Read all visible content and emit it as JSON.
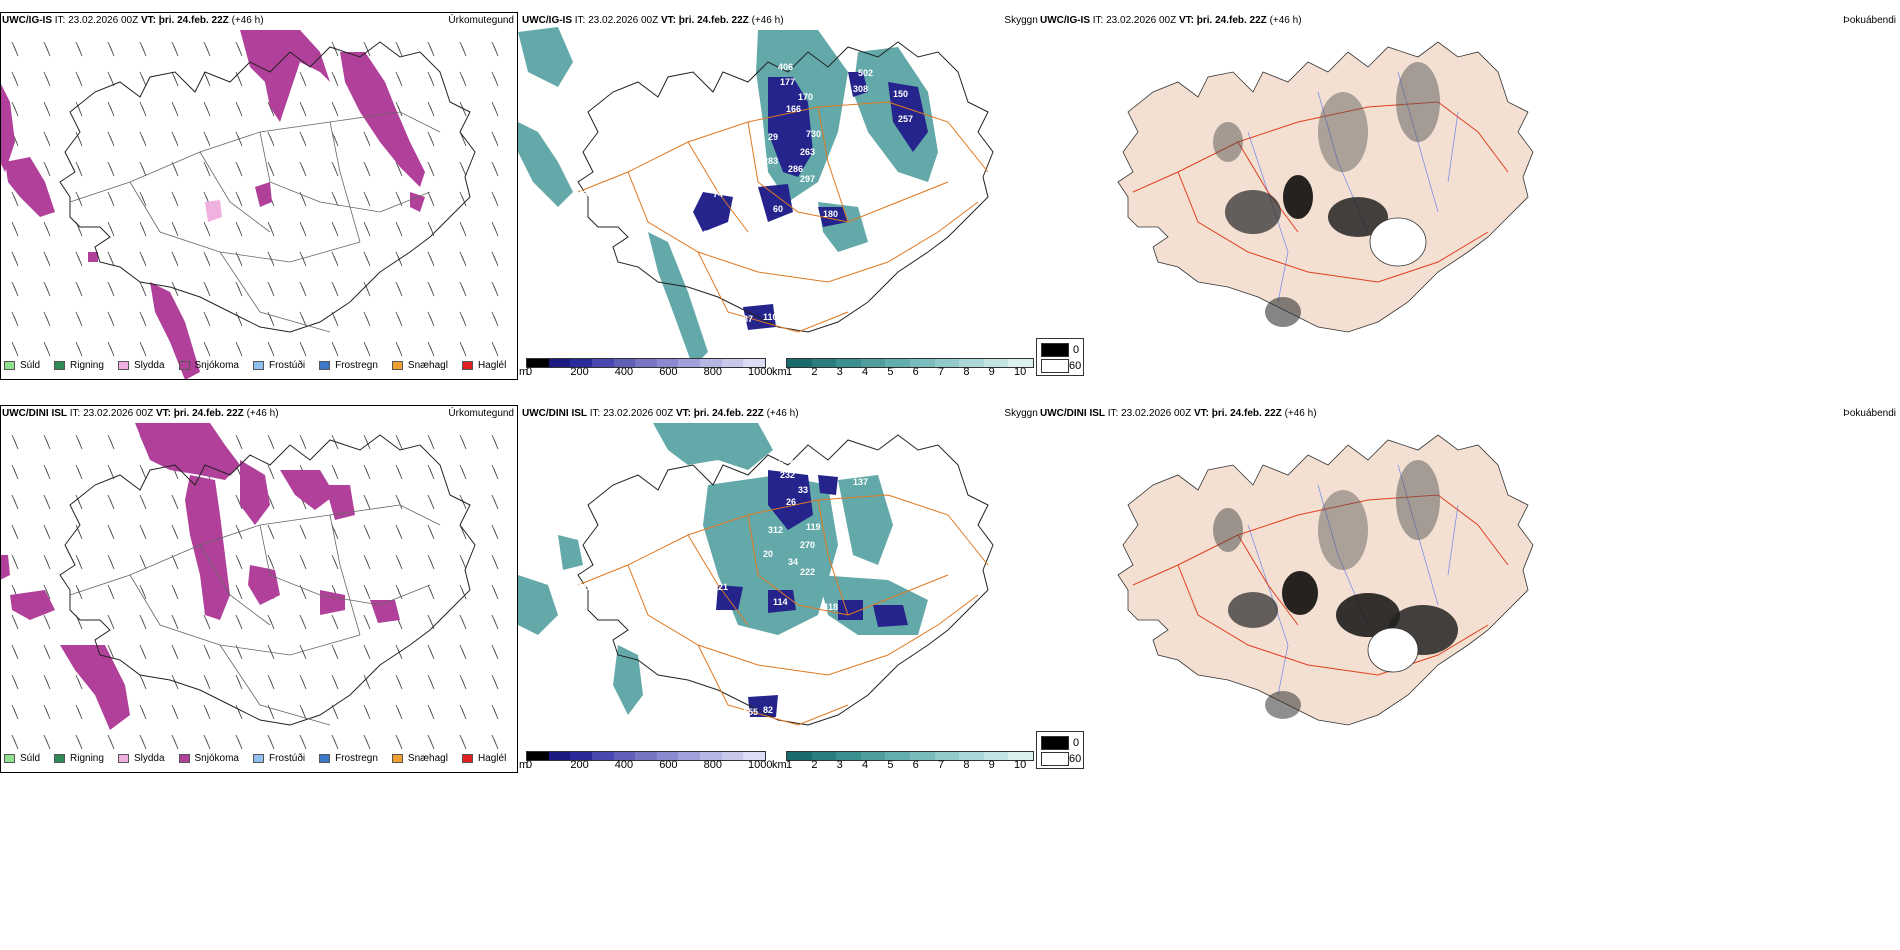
{
  "rows": [
    {
      "model": "UWC/IG-IS",
      "it_label": "IT:",
      "it_value": "23.02.2026 00Z",
      "vt_label": "VT:",
      "vt_value": "þri. 24.feb. 22Z",
      "lead": "(+46 h)",
      "precip_title": "Úrkomutegund",
      "vis_title": "Skyggni",
      "fog_title": "Þokuábendi",
      "cloud_labels": [
        "406",
        "177",
        "166",
        "170",
        "730",
        "29",
        "263",
        "283",
        "286",
        "297",
        "502",
        "308",
        "150",
        "257",
        "436",
        "60",
        "74",
        "399",
        "180",
        "37",
        "110"
      ]
    },
    {
      "model": "UWC/DINI ISL",
      "it_label": "IT:",
      "it_value": "23.02.2026 00Z",
      "vt_label": "VT:",
      "vt_value": "þri. 24.feb. 22Z",
      "lead": "(+46 h)",
      "precip_title": "Úrkomutegund",
      "vis_title": "Skyggni",
      "fog_title": "Þokuábendi",
      "cloud_labels": [
        "285",
        "232",
        "26",
        "33",
        "119",
        "312",
        "270",
        "20",
        "34",
        "222",
        "190",
        "137",
        "105",
        "237",
        "111",
        "114",
        "121",
        "163",
        "418",
        "155",
        "82",
        "72"
      ]
    }
  ],
  "precip_legend": [
    {
      "label": "Súld",
      "color": "#90e090"
    },
    {
      "label": "Rigning",
      "color": "#2e8b57"
    },
    {
      "label": "Slydda",
      "color": "#f0b0e0"
    },
    {
      "label": "Snjókoma",
      "color": "#b0409a"
    },
    {
      "label": "Frostúði",
      "color": "#90c0f0"
    },
    {
      "label": "Frostregn",
      "color": "#3a78c8"
    },
    {
      "label": "Snæhagl",
      "color": "#f0a030"
    },
    {
      "label": "Haglél",
      "color": "#e02020"
    }
  ],
  "cloudbase_bar": {
    "unit": "m",
    "ticks": [
      "0",
      "200",
      "400",
      "600",
      "800",
      "1000"
    ],
    "colors": [
      "#000000",
      "#1a1a80",
      "#2a2a9a",
      "#4848b0",
      "#6060b8",
      "#7676c4",
      "#8a8ad0",
      "#a0a0da",
      "#b6b6e4",
      "#c8c8ec",
      "#dcdcf4"
    ]
  },
  "visibility_bar": {
    "unit": "km",
    "ticks": [
      "1",
      "2",
      "3",
      "4",
      "5",
      "6",
      "7",
      "8",
      "9",
      "10"
    ],
    "colors": [
      "#1a6b6b",
      "#2a7d7d",
      "#3a8f8f",
      "#4e9e9e",
      "#62adad",
      "#7abcbc",
      "#92caca",
      "#aad8d8",
      "#c2e4e4",
      "#dcf0f0"
    ]
  },
  "fog_legend": {
    "high": "0",
    "low": "60",
    "high_color": "#000000",
    "low_color": "#ffffff"
  },
  "colors": {
    "snow": "#b0409a",
    "cloud": "#24248c",
    "vis": "#3d9494",
    "roads": "#e07820",
    "land_fog": "#f3e0d2",
    "roads_fog": "#e04020",
    "rivers": "#7f8fe8"
  }
}
